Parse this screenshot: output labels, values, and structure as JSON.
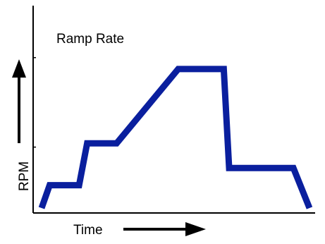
{
  "chart_data": {
    "type": "line",
    "title": "Ramp Rate",
    "xlabel": "Time",
    "ylabel": "RPM",
    "xlim": [
      0,
      100
    ],
    "ylim": [
      0,
      100
    ],
    "grid": false,
    "legend": "none",
    "x_ticks": false,
    "y_ticks": [
      32,
      79
    ],
    "series": [
      {
        "color": "#0a1f9e",
        "points": [
          [
            0,
            0
          ],
          [
            3,
            12
          ],
          [
            14,
            12
          ],
          [
            17,
            34
          ],
          [
            28,
            34
          ],
          [
            51,
            73
          ],
          [
            68,
            73
          ],
          [
            70,
            21
          ],
          [
            94,
            21
          ],
          [
            100,
            0
          ]
        ]
      }
    ]
  },
  "colors": {
    "axis": "#000000",
    "line": "#0a1f9e",
    "text": "#000000"
  }
}
